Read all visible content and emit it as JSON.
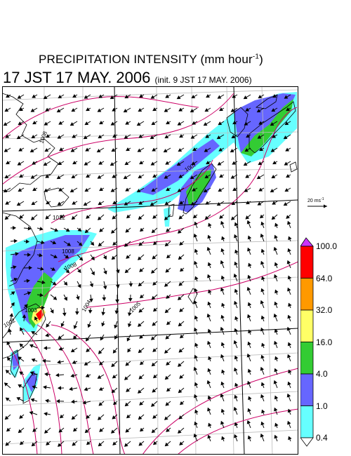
{
  "header": {
    "title_main": "PRECIPITATION INTENSITY (mm hour",
    "title_exp": "-1",
    "title_close": ")",
    "date": "17 JST 17 MAY. 2006",
    "init": "(init. 9 JST 17 MAY. 2006)"
  },
  "reference_arrow": {
    "label": "20 ms",
    "label_exp": "-1"
  },
  "colorbar": {
    "levels": [
      "100.0",
      "64.0",
      "32.0",
      "16.0",
      "4.0",
      "1.0",
      "0.4"
    ],
    "colors": [
      "#ff0000",
      "#ff9900",
      "#ffff66",
      "#33cc33",
      "#6666ff",
      "#66ffff"
    ],
    "top_arrow_color": "#cc33ff",
    "bottom_arrow_color": "#ffffff"
  },
  "pressure_contour_labels": [
    "1008",
    "1012",
    "1007",
    "1008",
    "1008",
    "1004",
    "1005",
    "1003",
    "1002"
  ],
  "colors": {
    "land_outline": "#000000",
    "grid": "#bbbbbb",
    "isobar": "#cc0066",
    "frame": "#000000"
  }
}
